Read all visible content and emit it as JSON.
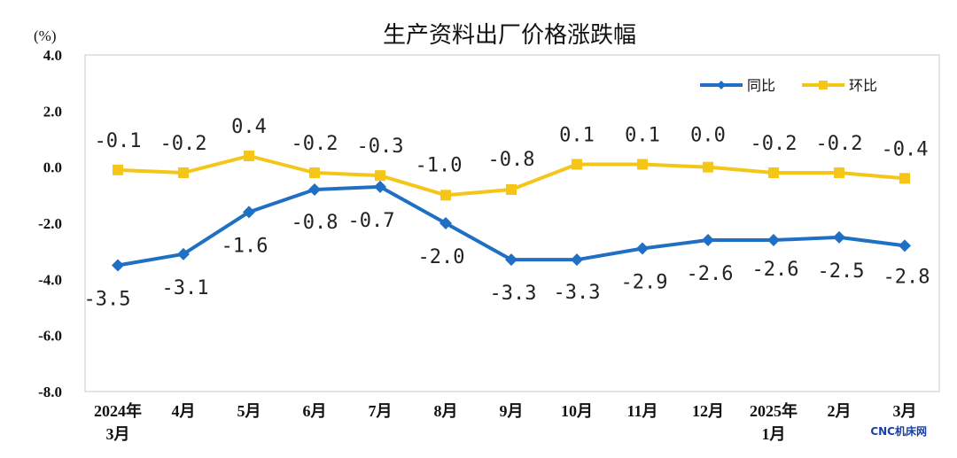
{
  "chart_data": {
    "type": "line",
    "title": "生产资料出厂价格涨跌幅",
    "yunit": "(%)",
    "ylim": [
      -8.0,
      4.0
    ],
    "yticks": [
      "4.0",
      "2.0",
      "0.0",
      "-2.0",
      "-4.0",
      "-6.0",
      "-8.0"
    ],
    "categories": [
      [
        "2024年",
        "3月"
      ],
      [
        "4月"
      ],
      [
        "5月"
      ],
      [
        "6月"
      ],
      [
        "7月"
      ],
      [
        "8月"
      ],
      [
        "9月"
      ],
      [
        "10月"
      ],
      [
        "11月"
      ],
      [
        "12月"
      ],
      [
        "2025年",
        "1月"
      ],
      [
        "2月"
      ],
      [
        "3月"
      ]
    ],
    "series": [
      {
        "name": "同比",
        "color": "#1f6fc4",
        "marker": "diamond",
        "values": [
          -3.5,
          -3.1,
          -1.6,
          -0.8,
          -0.7,
          -2.0,
          -3.3,
          -3.3,
          -2.9,
          -2.6,
          -2.6,
          -2.5,
          -2.8
        ],
        "labels": [
          "-3.5",
          "-3.1",
          "-1.6",
          "-0.8",
          "-0.7",
          "-2.0",
          "-3.3",
          "-3.3",
          "-2.9",
          "-2.6",
          "-2.6",
          "-2.5",
          "-2.8"
        ]
      },
      {
        "name": "环比",
        "color": "#f5c518",
        "marker": "square",
        "values": [
          -0.1,
          -0.2,
          0.4,
          -0.2,
          -0.3,
          -1.0,
          -0.8,
          0.1,
          0.1,
          0.0,
          -0.2,
          -0.2,
          -0.4
        ],
        "labels": [
          "-0.1",
          "-0.2",
          "0.4",
          "-0.2",
          "-0.3",
          "-1.0",
          "-0.8",
          "0.1",
          "0.1",
          "0.0",
          "-0.2",
          "-0.2",
          "-0.4"
        ]
      }
    ],
    "legend_position": "top-right",
    "grid": false
  },
  "watermark": "CNC机床网"
}
